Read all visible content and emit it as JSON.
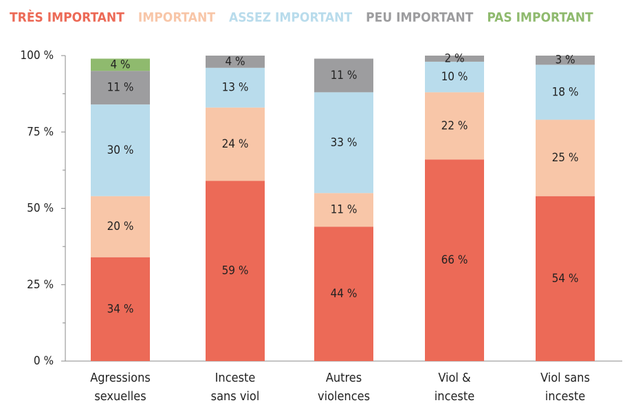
{
  "chart_data": {
    "type": "stacked_bar",
    "categories": [
      "Agressions\nsexuelles",
      "Inceste\nsans viol",
      "Autres\nviolences",
      "Viol &\ninceste",
      "Viol sans\ninceste"
    ],
    "series": [
      {
        "name": "TRÈS IMPORTANT",
        "color": "#ec6a57",
        "values": [
          34,
          59,
          44,
          66,
          54
        ],
        "value_labels": [
          "34 %",
          "59 %",
          "44 %",
          "66 %",
          "54 %"
        ]
      },
      {
        "name": "IMPORTANT",
        "color": "#f8c6a8",
        "values": [
          20,
          24,
          11,
          22,
          25
        ],
        "value_labels": [
          "20 %",
          "24 %",
          "11 %",
          "22 %",
          "25 %"
        ]
      },
      {
        "name": "ASSEZ IMPORTANT",
        "color": "#b9dcec",
        "values": [
          30,
          13,
          33,
          10,
          18
        ],
        "value_labels": [
          "30 %",
          "13 %",
          "33 %",
          "10 %",
          "18 %"
        ]
      },
      {
        "name": "PEU IMPORTANT",
        "color": "#9d9d9f",
        "values": [
          11,
          4,
          11,
          2,
          3
        ],
        "value_labels": [
          "11 %",
          "4 %",
          "11 %",
          "2 %",
          "3 %"
        ]
      },
      {
        "name": "PAS IMPORTANT",
        "color": "#8fba6e",
        "values": [
          4,
          null,
          null,
          null,
          null
        ],
        "value_labels": [
          "4 %",
          null,
          null,
          null,
          null
        ]
      }
    ],
    "ylim": [
      0,
      100
    ],
    "yticks": [
      {
        "value": 0,
        "label": "0 %"
      },
      {
        "value": 25,
        "label": "25 %"
      },
      {
        "value": 50,
        "label": "50 %"
      },
      {
        "value": 75,
        "label": "75 %"
      },
      {
        "value": 100,
        "label": "100 %"
      }
    ],
    "minor_yticks": [
      12.5,
      37.5,
      62.5,
      87.5
    ],
    "legend": "top"
  }
}
